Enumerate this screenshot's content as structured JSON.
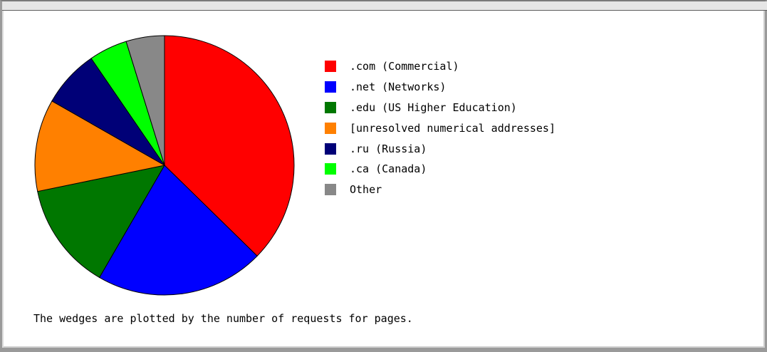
{
  "chart_data": {
    "type": "pie",
    "series": [
      {
        "name": ".com (Commercial)",
        "value": 39.0,
        "color": "#ff0000"
      },
      {
        "name": ".net (Networks)",
        "value": 22.0,
        "color": "#0000ff"
      },
      {
        "name": ".edu (US Higher Education)",
        "value": 14.0,
        "color": "#007700"
      },
      {
        "name": "[unresolved numerical addresses]",
        "value": 12.0,
        "color": "#ff8000"
      },
      {
        "name": ".ru (Russia)",
        "value": 7.5,
        "color": "#000077"
      },
      {
        "name": ".ca (Canada)",
        "value": 5.0,
        "color": "#00ff00"
      },
      {
        "name": "Other",
        "value": 5.0,
        "color": "#888888"
      }
    ],
    "start_angle": "12 o'clock",
    "direction": "clockwise",
    "legend_position": "right"
  },
  "caption": "The wedges are plotted by the number of requests for pages."
}
